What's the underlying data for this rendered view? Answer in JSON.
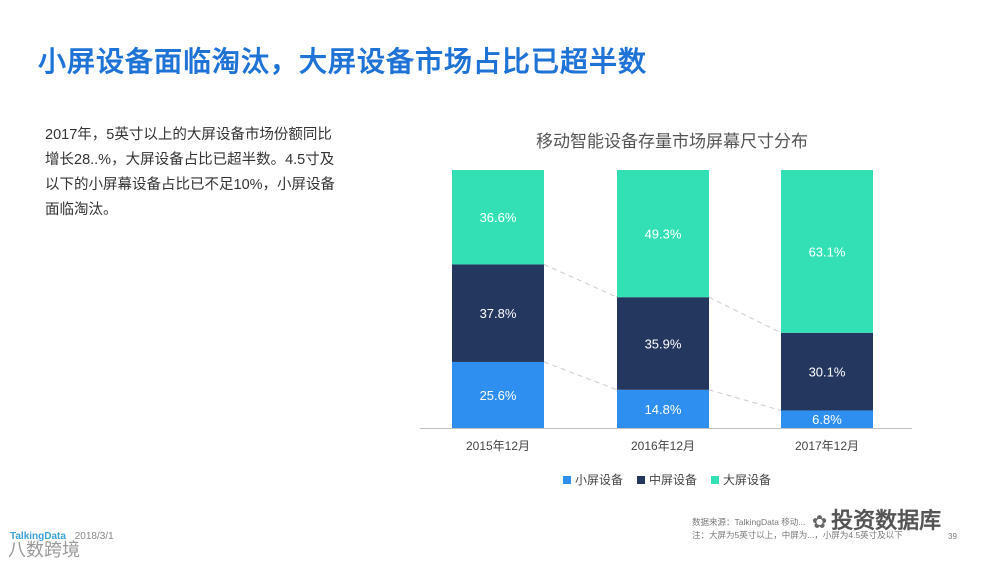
{
  "slide": {
    "title": "小屏设备面临淘汰，大屏设备市场占比已超半数",
    "description": "2017年，5英寸以上的大屏设备市场份额同比增长28..%，大屏设备占比已超半数。4.5寸及以下的小屏幕设备占比已不足10%，小屏设备面临淘汰。",
    "footer_brand": "TalkingData",
    "footer_date": "2018/3/1",
    "source_line1": "数据来源：TalkingData 移动...",
    "source_line2": "注：大屏为5英寸以上，中屏为...，小屏为4.5英寸及以下",
    "page_number": "39",
    "watermark": "投资数据库",
    "watermark_icon": "wechat-icon",
    "watermark2": "八数跨境"
  },
  "chart_data": {
    "type": "bar",
    "stacked": true,
    "normalized": true,
    "title": "移动智能设备存量市场屏幕尺寸分布",
    "categories": [
      "2015年12月",
      "2016年12月",
      "2017年12月"
    ],
    "series": [
      {
        "name": "小屏设备",
        "color": "#2e8ff0",
        "values": [
          25.6,
          14.8,
          6.8
        ],
        "labels": [
          "25.6%",
          "14.8%",
          "6.8%"
        ]
      },
      {
        "name": "中屏设备",
        "color": "#24375f",
        "values": [
          37.8,
          35.9,
          30.1
        ],
        "labels": [
          "37.8%",
          "35.9%",
          "30.1%"
        ]
      },
      {
        "name": "大屏设备",
        "color": "#33e0b5",
        "values": [
          36.6,
          49.3,
          63.1
        ],
        "labels": [
          "36.6%",
          "49.3%",
          "63.1%"
        ]
      }
    ],
    "ylim": [
      0,
      100
    ],
    "grid": false,
    "connector_lines": true,
    "legend_position": "bottom"
  }
}
